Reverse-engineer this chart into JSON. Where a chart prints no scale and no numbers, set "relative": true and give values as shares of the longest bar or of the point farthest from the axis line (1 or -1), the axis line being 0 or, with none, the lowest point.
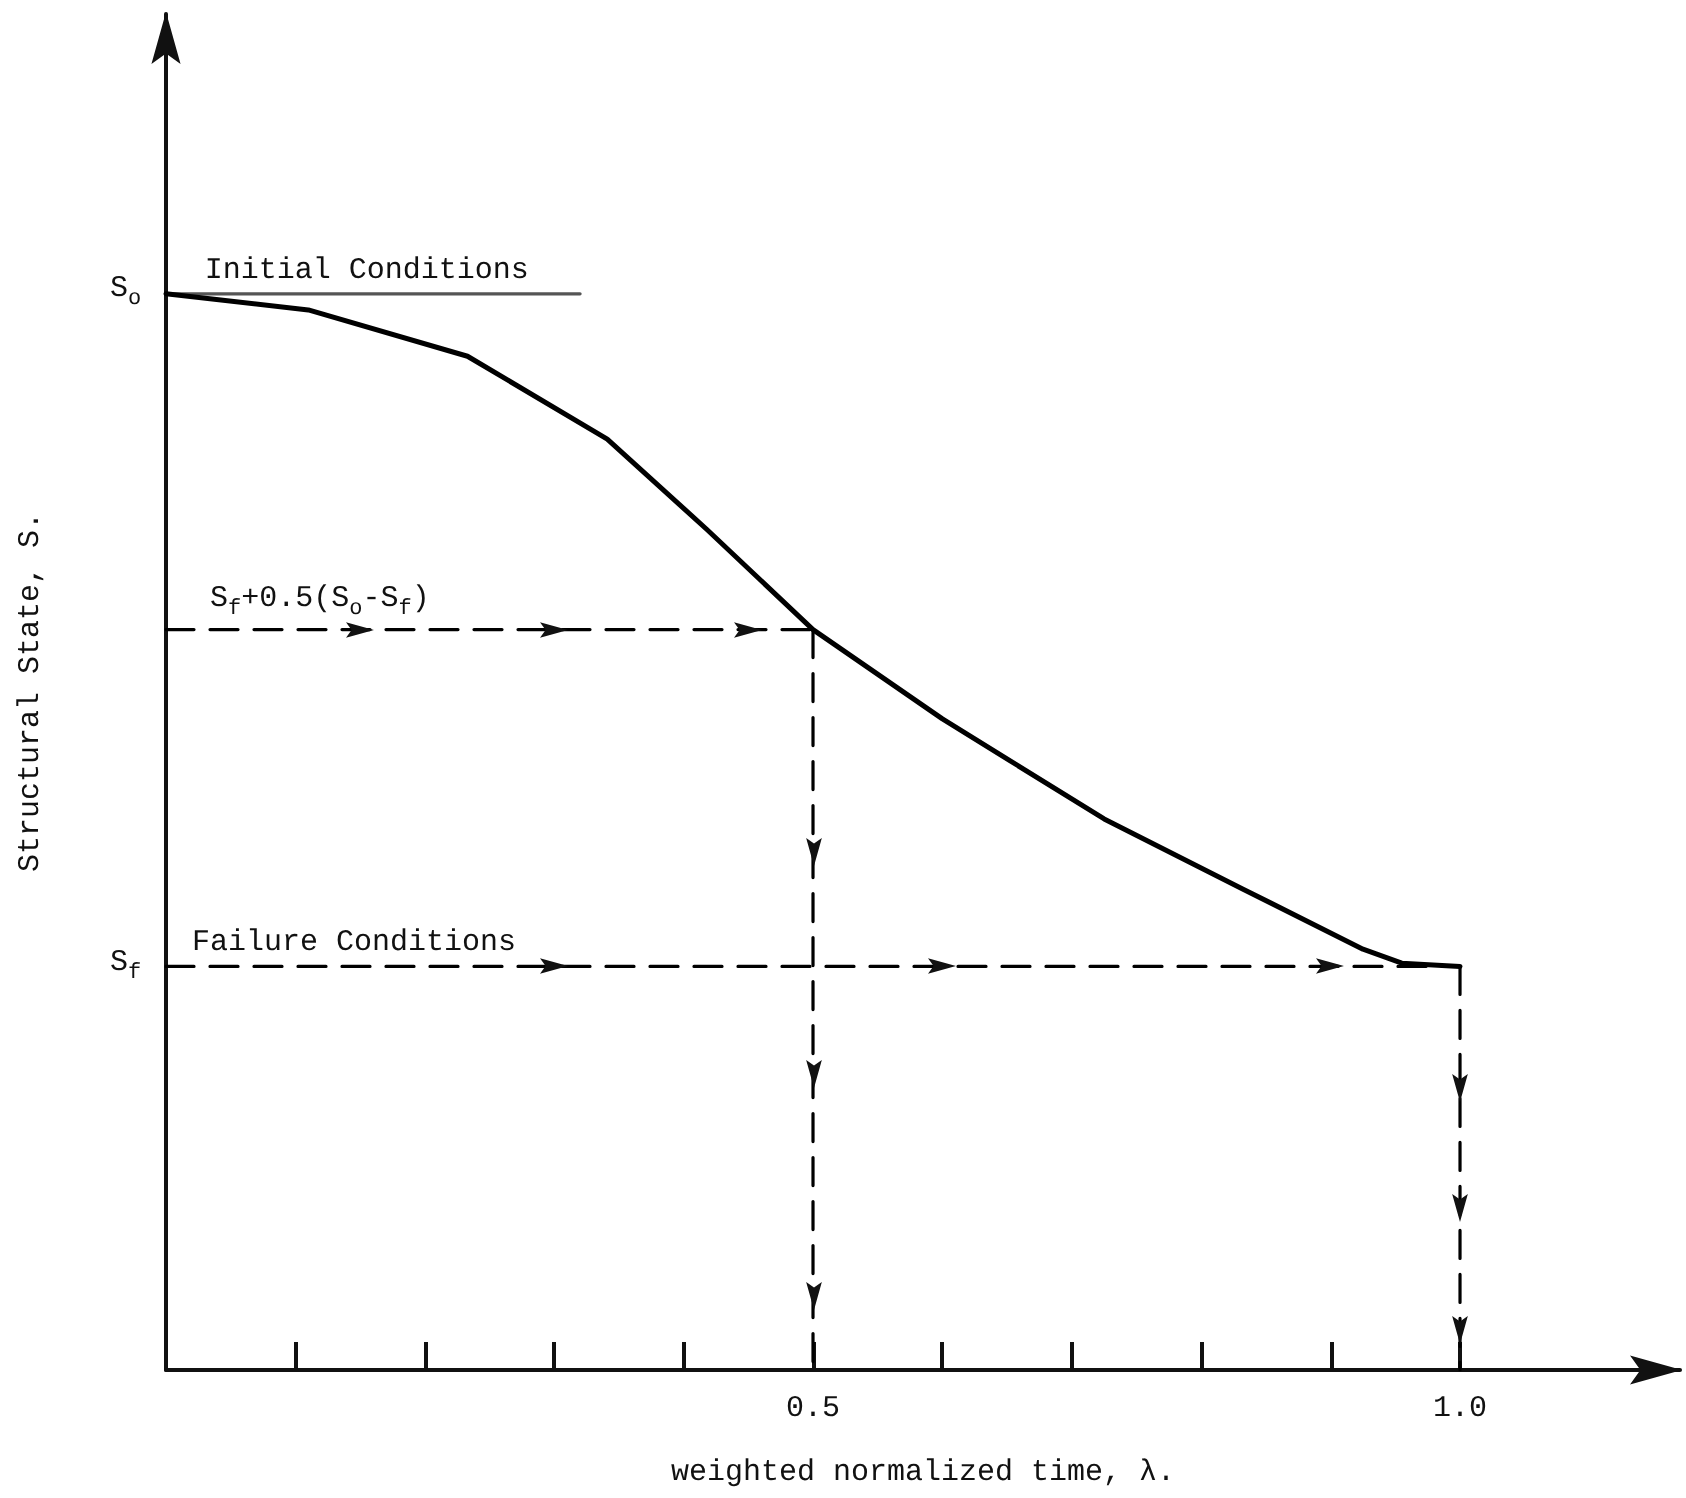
{
  "chart_data": {
    "type": "line",
    "relative": true,
    "xlabel": "weighted normalized time, λ.",
    "ylabel": "Structural State, S.",
    "xlim": [
      0,
      1.17
    ],
    "xticks": [
      {
        "value": 0.1,
        "label": null
      },
      {
        "value": 0.2,
        "label": null
      },
      {
        "value": 0.3,
        "label": null
      },
      {
        "value": 0.4,
        "label": null
      },
      0.5,
      {
        "value": 0.6,
        "label": null
      },
      {
        "value": 0.7,
        "label": null
      },
      {
        "value": 0.8,
        "label": null
      },
      {
        "value": 0.9,
        "label": null
      },
      {
        "value": 1,
        "label": "1.0"
      }
    ],
    "marker": "none",
    "grid": false,
    "series": [
      {
        "color": "#000000",
        "line_style": "solid",
        "x": [
          0,
          0.11,
          0.233,
          0.341,
          0.418,
          0.5,
          0.6,
          0.725,
          0.832,
          0.925,
          0.955,
          1.0
        ],
        "values": [
          1,
          0.985,
          0.942,
          0.865,
          0.781,
          0.688,
          0.605,
          0.512,
          0.447,
          0.391,
          0.378,
          0.375
        ]
      },
      {
        "color": "#555555",
        "line_style": "solid",
        "x": [
          0,
          0.32
        ],
        "values": [
          1,
          1
        ]
      },
      {
        "color": "#000000",
        "line_style": "dashed",
        "x": [
          0,
          0.5
        ],
        "values": [
          0.688,
          0.688
        ]
      },
      {
        "color": "#000000",
        "line_style": "dashed",
        "x": [
          0.5,
          0.5
        ],
        "values": [
          0.688,
          0
        ]
      },
      {
        "color": "#000000",
        "line_style": "dashed",
        "x": [
          0,
          1.0
        ],
        "values": [
          0.375,
          0.375
        ]
      },
      {
        "color": "#000000",
        "line_style": "dashed",
        "x": [
          1.0,
          1.0
        ],
        "values": [
          0.375,
          0
        ]
      }
    ],
    "annotations": [
      {
        "text": "S$_{o}$",
        "x": 0,
        "y": 1
      },
      {
        "text": "S$_{f}$",
        "x": 0,
        "y": 0.375
      },
      {
        "text": "Initial Conditions",
        "x": 0.03,
        "y": 1.0
      },
      {
        "text": "S$_{f}$+0.5(S$_{o}$-S$_{f}$)",
        "x": 0.034,
        "y": 0.688
      },
      {
        "text": "Failure Conditions",
        "x": 0.02,
        "y": 0.375
      }
    ]
  }
}
